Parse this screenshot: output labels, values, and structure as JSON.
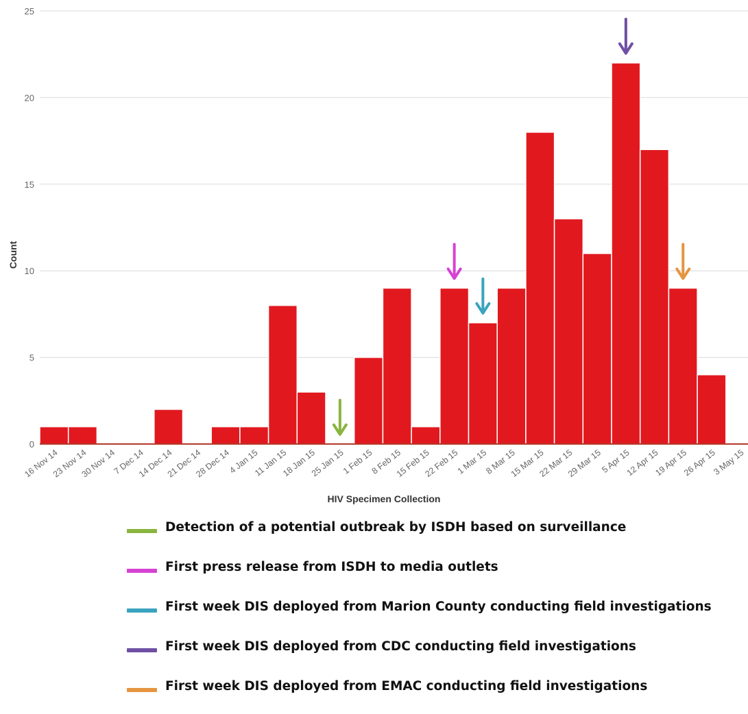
{
  "chart_data": {
    "type": "bar",
    "title": "",
    "xlabel": "HIV Specimen Collection",
    "ylabel": "Count",
    "ylim": [
      0,
      25
    ],
    "yticks": [
      "0",
      "5",
      "10",
      "15",
      "20",
      "25"
    ],
    "grid": true,
    "bar_color": "#e1191f",
    "categories": [
      "16 Nov 14",
      "23 Nov 14",
      "30 Nov 14",
      "7 Dec 14",
      "14 Dec 14",
      "21 Dec 14",
      "28 Dec 14",
      "4 Jan 15",
      "11 Jan 15",
      "18 Jan 15",
      "25 Jan 15",
      "1 Feb 15",
      "8 Feb 15",
      "15 Feb 15",
      "22 Feb 15",
      "1 Mar 15",
      "8 Mar 15",
      "15 Mar 15",
      "22 Mar 15",
      "29 Mar 15",
      "5 Apr 15",
      "12 Apr 15",
      "19 Apr 15",
      "26 Apr 15",
      "3 May 15"
    ],
    "values": [
      1,
      1,
      0,
      0,
      2,
      0,
      1,
      1,
      8,
      3,
      0,
      5,
      9,
      1,
      9,
      7,
      9,
      18,
      13,
      11,
      22,
      17,
      9,
      4,
      0
    ],
    "annotations": [
      {
        "category": "25 Jan 15",
        "color": "#8ab43f",
        "label": "Detection of a potential outbreak by ISDH based on surveillance"
      },
      {
        "category": "22 Feb 15",
        "color": "#d543d3",
        "label": "First press release from ISDH to media outlets"
      },
      {
        "category": "1 Mar 15",
        "color": "#3aa3bf",
        "label": "First week DIS deployed from Marion County conducting field investigations"
      },
      {
        "category": "5 Apr 15",
        "color": "#6f4fa3",
        "label": "First week DIS deployed from CDC conducting field investigations"
      },
      {
        "category": "19 Apr 15",
        "color": "#e69540",
        "label": "First week DIS deployed from EMAC conducting field investigations"
      }
    ]
  }
}
